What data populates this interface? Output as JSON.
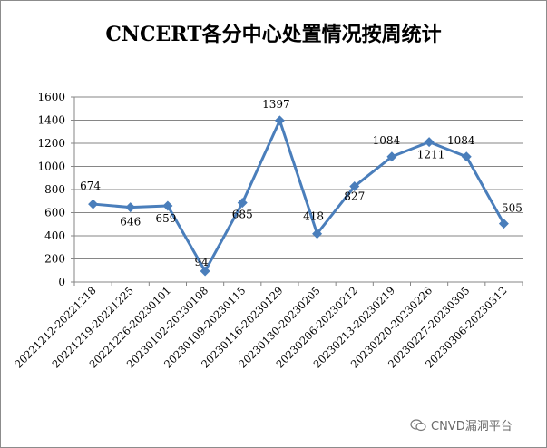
{
  "chart_data": {
    "type": "line",
    "title": "CNCERT各分中心处置情况按周统计",
    "categories": [
      "20221212-20221218",
      "20221219-20221225",
      "20221226-20230101",
      "20230102-20230108",
      "20230109-20230115",
      "20230116-20230129",
      "20230130-20230205",
      "20230206-20230212",
      "20230213-20230219",
      "20230220-20230226",
      "20230227-20230305",
      "20230306-20230312"
    ],
    "series": [
      {
        "values": [
          674,
          646,
          659,
          94,
          685,
          1397,
          418,
          827,
          1084,
          1211,
          1084,
          505
        ]
      }
    ],
    "data_labels": [
      "674",
      "646",
      "659",
      "94",
      "685",
      "1397",
      "418",
      "827",
      "1084",
      "1211",
      "1084",
      "505"
    ],
    "ylim": [
      0,
      1600
    ],
    "yticks": [
      0,
      200,
      400,
      600,
      800,
      1000,
      1200,
      1400,
      1600
    ],
    "ytick_labels": [
      "0",
      "200",
      "400",
      "600",
      "800",
      "1000",
      "1200",
      "1400",
      "1600"
    ],
    "grid": true,
    "legend": "none",
    "line_color": "#4a7ebb",
    "marker": "diamond"
  },
  "watermark": {
    "text": "CNVD漏洞平台",
    "icon": "wechat-icon"
  }
}
